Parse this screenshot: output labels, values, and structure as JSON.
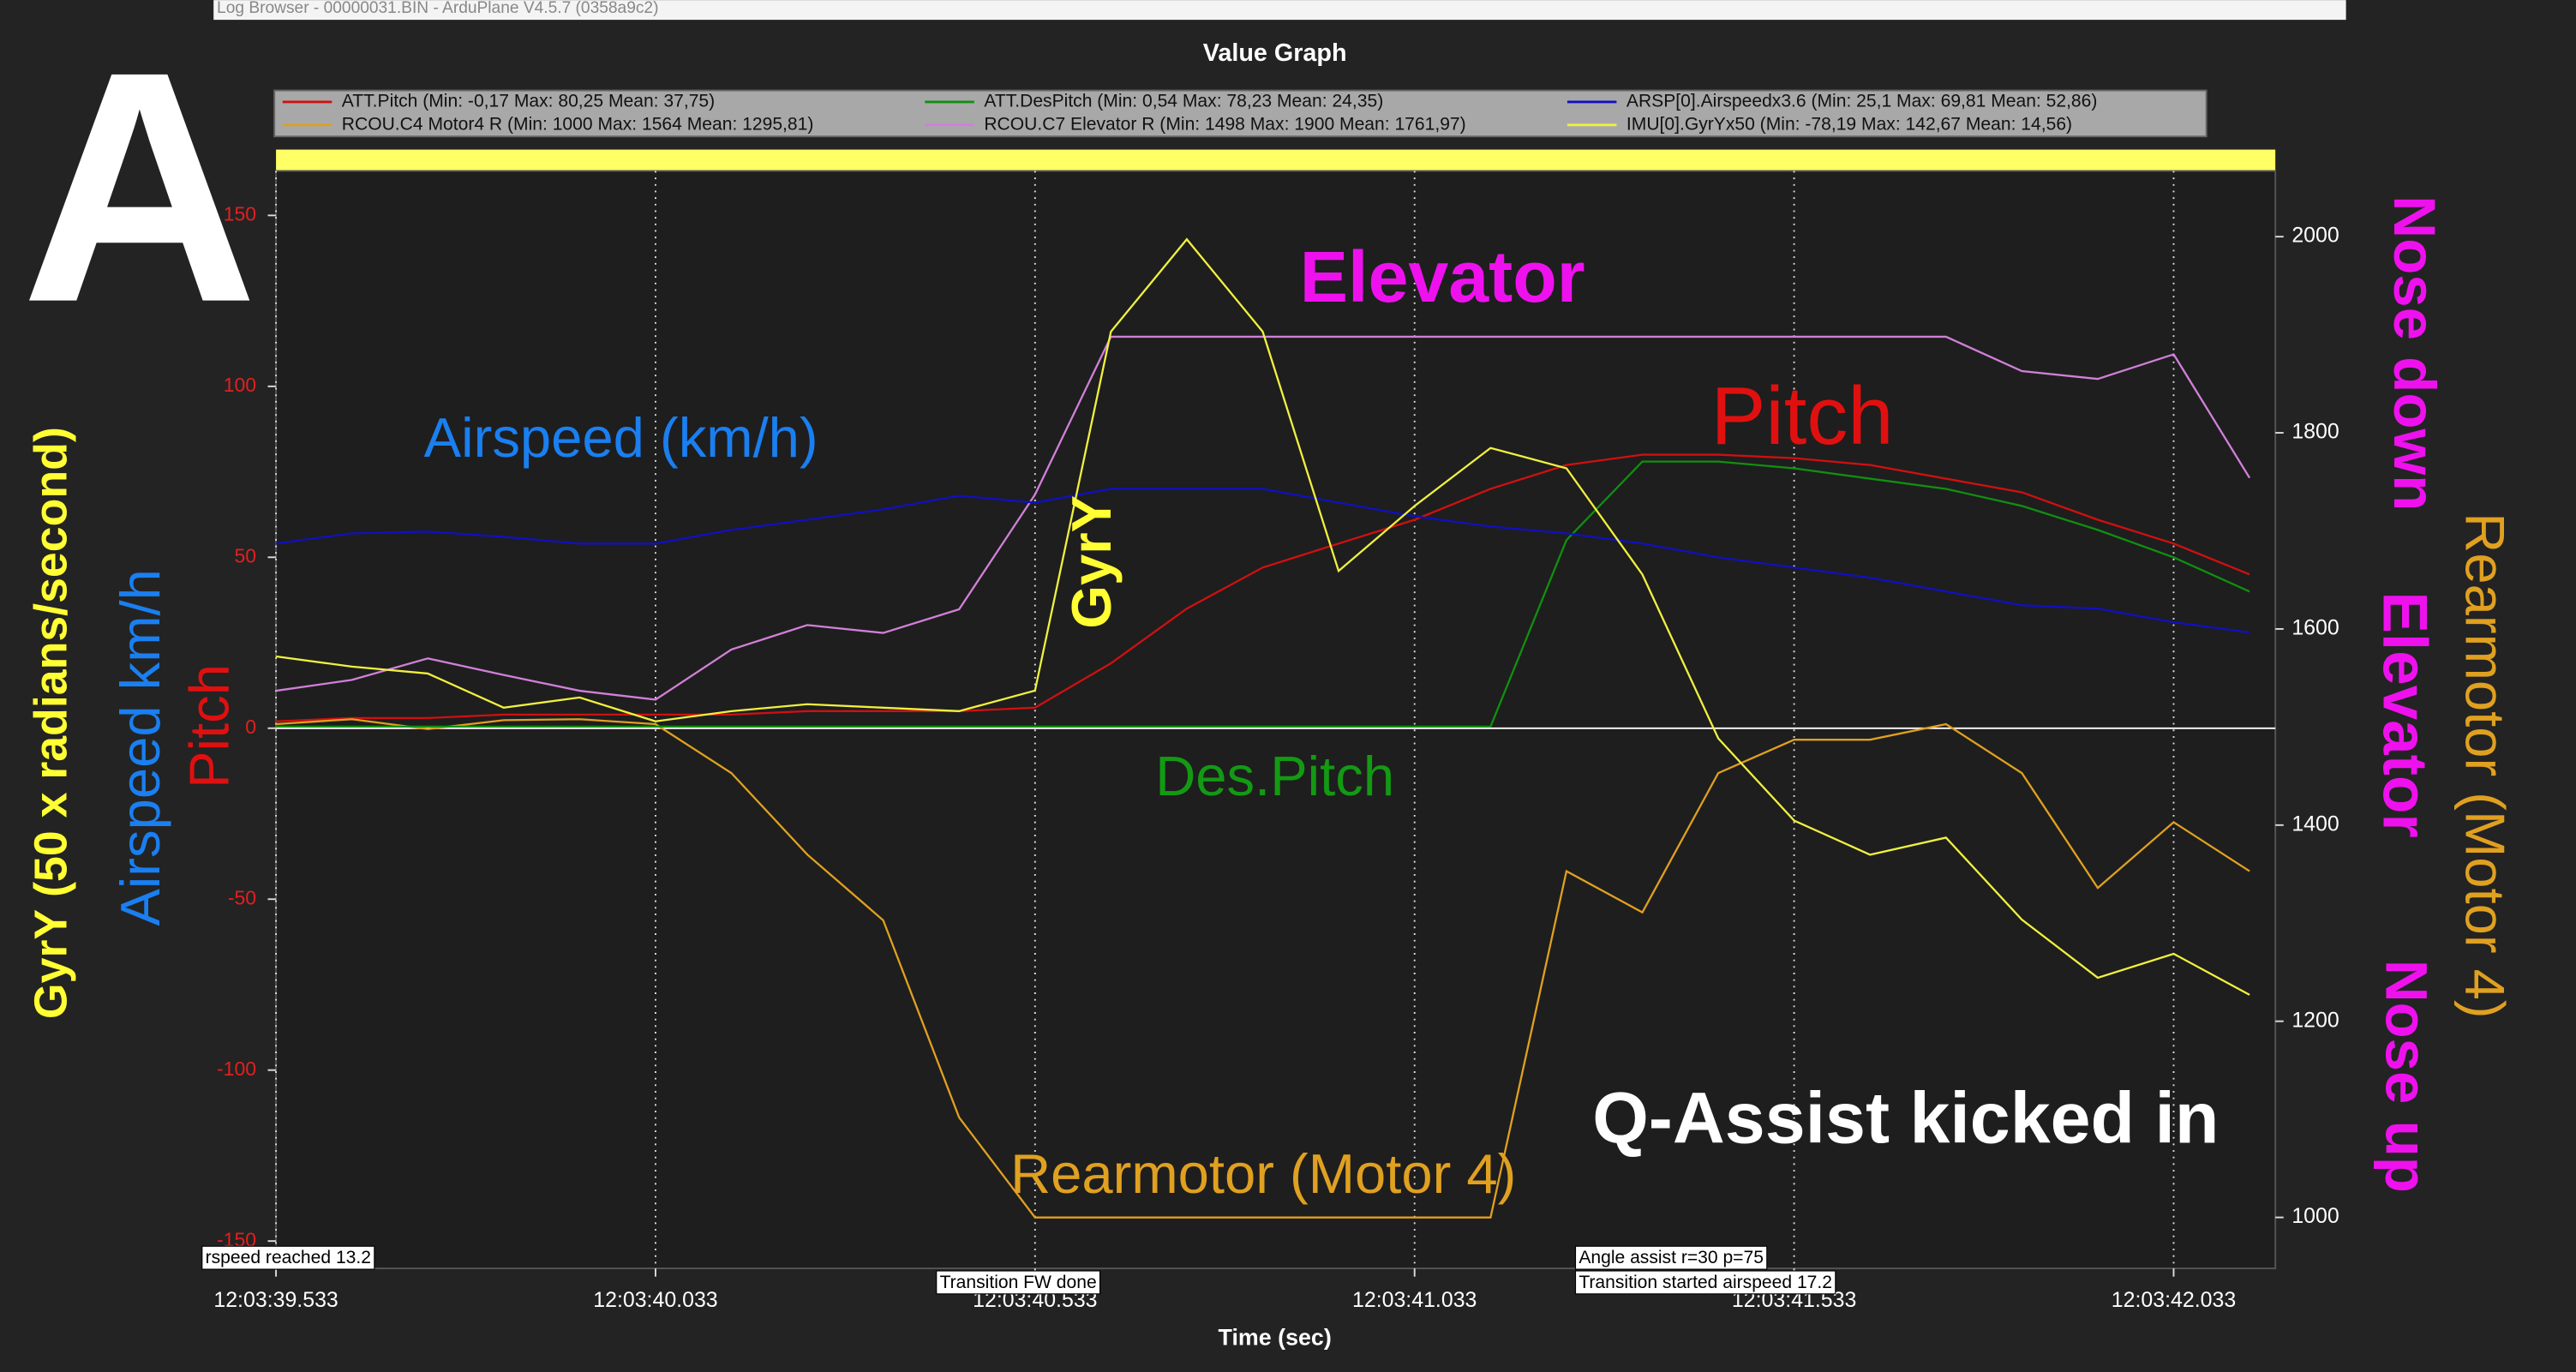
{
  "window_title": "Log Browser - 00000031.BIN - ArduPlane V4.5.7 (0358a9c2)",
  "chart_data": {
    "type": "line",
    "title": "Value Graph",
    "x_label": "Time (sec)",
    "x": [
      39.533,
      39.633,
      39.733,
      39.833,
      39.933,
      40.033,
      40.133,
      40.233,
      40.333,
      40.433,
      40.533,
      40.633,
      40.733,
      40.833,
      40.933,
      41.033,
      41.133,
      41.233,
      41.333,
      41.433,
      41.533,
      41.633,
      41.733,
      41.833,
      41.933,
      42.033,
      42.133
    ],
    "xlim": [
      39.533,
      42.167
    ],
    "xticks": [
      {
        "value": 39.533,
        "label": "12:03:39.533"
      },
      {
        "value": 40.033,
        "label": "12:03:40.033"
      },
      {
        "value": 40.533,
        "label": "12:03:40.533"
      },
      {
        "value": 41.033,
        "label": "12:03:41.033"
      },
      {
        "value": 41.533,
        "label": "12:03:41.533"
      },
      {
        "value": 42.033,
        "label": "12:03:42.033"
      }
    ],
    "ylim": [
      -158,
      163
    ],
    "yticks": [
      -150,
      -100,
      -50,
      0,
      50,
      100,
      150
    ],
    "y2lim": [
      948,
      2067
    ],
    "y2ticks": [
      1000,
      1200,
      1400,
      1600,
      1800,
      2000
    ],
    "grid": true,
    "series": [
      {
        "name": "ATT.Pitch  (Min: -0,17 Max: 80,25 Mean: 37,75)",
        "color": "#d01010",
        "values": [
          2,
          3,
          3,
          4,
          4,
          4,
          4,
          5,
          5,
          5,
          6,
          19,
          35,
          47,
          54,
          61,
          70,
          77,
          80,
          80,
          79,
          77,
          73,
          69,
          61,
          54,
          45
        ]
      },
      {
        "name": "RCOU.C4 Motor4 R (Min: 1000 Max: 1564 Mean: 1295,81)",
        "color": "#e0a020",
        "axis": "y2",
        "values": [
          1503,
          1508,
          1498,
          1507,
          1508,
          1503,
          1453,
          1370,
          1303,
          1102,
          1000,
          1000,
          1000,
          1000,
          1000,
          1000,
          1000,
          1353,
          1311,
          1453,
          1487,
          1487,
          1503,
          1453,
          1336,
          1403,
          1353
        ]
      },
      {
        "name": "ATT.DesPitch  (Min: 0,54 Max: 78,23 Mean: 24,35)",
        "color": "#109010",
        "values": [
          0.5,
          0.5,
          0.5,
          0.5,
          0.5,
          0.5,
          0.5,
          0.5,
          0.5,
          0.5,
          0.5,
          0.5,
          0.5,
          0.5,
          0.5,
          0.5,
          0.5,
          55,
          78,
          78,
          76,
          73,
          70,
          65,
          58,
          50,
          40
        ]
      },
      {
        "name": "RCOU.C7 Elevator R (Min: 1498 Max: 1900 Mean: 1761,97)",
        "color": "#d080d8",
        "axis": "y2",
        "values": [
          1537,
          1548,
          1570,
          1553,
          1537,
          1528,
          1579,
          1604,
          1596,
          1620,
          1737,
          1898,
          1898,
          1898,
          1898,
          1898,
          1898,
          1898,
          1898,
          1898,
          1898,
          1898,
          1898,
          1863,
          1855,
          1880,
          1754
        ]
      },
      {
        "name": "ARSP[0].Airspeedx3.6  (Min: 25,1 Max: 69,81 Mean: 52,86)",
        "color": "#1010c0",
        "values": [
          54,
          57,
          57.5,
          56,
          54,
          54,
          58,
          61,
          64,
          68,
          66,
          70,
          70,
          70,
          66,
          62,
          59,
          57,
          54,
          50,
          47,
          44,
          40,
          36,
          35,
          31,
          28
        ]
      },
      {
        "name": "IMU[0].GyrYx50  (Min: -78,19 Max: 142,67 Mean: 14,56)",
        "color": "#f0f040",
        "values": [
          21,
          18,
          16,
          6,
          9,
          2,
          5,
          7,
          6,
          5,
          11,
          116,
          143,
          116,
          46,
          65,
          82,
          76,
          45,
          -3,
          -27,
          -37,
          -32,
          -56,
          -73,
          -66,
          -78
        ]
      }
    ],
    "events": [
      "rspeed reached 13.2",
      "Transition FW done",
      "Angle assist r=30 p=75",
      "Transition started airspeed 17.2"
    ],
    "annotations": [
      "A",
      "GyrY (50 x radians/second)",
      "Airspeed km/h",
      "Pitch",
      "Airspeed (km/h)",
      "Elevator",
      "Pitch",
      "GyrY",
      "Des.Pitch",
      "Rearmotor (Motor 4)",
      "Q-Assist kicked in",
      "Nose down",
      "Elevator",
      "Nose up",
      "Rearmotor (Motor 4)"
    ]
  }
}
